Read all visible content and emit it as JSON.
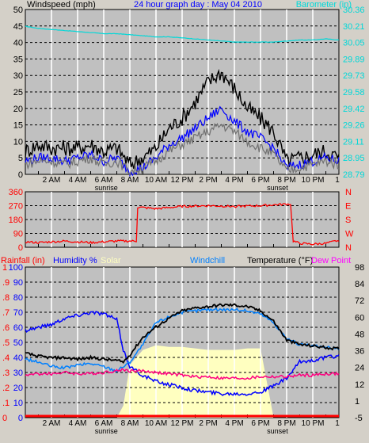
{
  "title": "24 hour graph day : May 04 2010",
  "colors": {
    "background": "#d4d0c8",
    "plot": "#c0c0c0",
    "grid_h": "#000000",
    "grid_v": "#ffffff",
    "title": "#0000ff",
    "barometer": "#00d8d8",
    "wind_gust": "#000000",
    "wind_avg": "#0000ff",
    "wind_dir": "#ff0000",
    "rain": "#ff0000",
    "humidity": "#0000ff",
    "solar": "#ffffc0",
    "windchill": "#0080ff",
    "temperature": "#000000",
    "dewpoint": "#ff0080"
  },
  "x_ticks": [
    "2 AM",
    "4 AM",
    "6 AM",
    "8 AM",
    "10 AM",
    "12 PM",
    "2 PM",
    "4 PM",
    "6 PM",
    "8 PM",
    "10 PM"
  ],
  "sunrise_label": "sunrise",
  "sunset_label": "sunset",
  "chart_data": [
    {
      "type": "line",
      "name": "wind-barometer",
      "left_axis_label": "Windspeed (mph)",
      "right_axis_label": "Barometer (in)",
      "ylim_left": [
        0,
        50
      ],
      "ylim_right": [
        28.79,
        30.36
      ],
      "left_ticks": [
        "0",
        "5",
        "10",
        "15",
        "20",
        "25",
        "30",
        "35",
        "40",
        "45",
        "50"
      ],
      "right_ticks": [
        "28.79",
        "28.95",
        "29.11",
        "29.26",
        "29.42",
        "29.58",
        "29.73",
        "29.89",
        "30.05",
        "30.21",
        "30.36"
      ],
      "x_hours": [
        0,
        1,
        2,
        3,
        4,
        5,
        6,
        7,
        8,
        9,
        10,
        11,
        12,
        13,
        14,
        15,
        16,
        17,
        18,
        19,
        20,
        21,
        22,
        23,
        24
      ],
      "series": [
        {
          "key": "barometer",
          "axis": "right",
          "values": [
            30.2,
            30.18,
            30.17,
            30.16,
            30.15,
            30.14,
            30.13,
            30.13,
            30.12,
            30.11,
            30.1,
            30.1,
            30.09,
            30.08,
            30.07,
            30.06,
            30.05,
            30.05,
            30.05,
            30.05,
            30.06,
            30.07,
            30.07,
            30.08,
            30.07
          ]
        },
        {
          "key": "gust",
          "axis": "left",
          "values": [
            7,
            9,
            8,
            8,
            8,
            9,
            7,
            8,
            3,
            5,
            8,
            14,
            17,
            22,
            28,
            31,
            26,
            20,
            17,
            13,
            4,
            5,
            6,
            7,
            5
          ]
        },
        {
          "key": "avg",
          "axis": "left",
          "values": [
            4,
            5,
            5,
            4,
            5,
            6,
            4,
            5,
            1,
            2,
            5,
            9,
            11,
            14,
            17,
            20,
            16,
            13,
            11,
            8,
            2,
            3,
            4,
            5,
            4
          ]
        },
        {
          "key": "avg_gray",
          "axis": "left",
          "values": [
            3,
            4,
            4,
            3,
            4,
            5,
            3,
            4,
            1,
            2,
            4,
            7,
            9,
            11,
            13,
            15,
            13,
            10,
            8,
            6,
            1,
            2,
            3,
            4,
            3
          ]
        }
      ]
    },
    {
      "type": "line",
      "name": "wind-direction",
      "left_ticks": [
        "0",
        "90",
        "180",
        "270",
        "360"
      ],
      "right_ticks": [
        "N",
        "W",
        "S",
        "E",
        "N"
      ],
      "ylim": [
        0,
        360
      ],
      "x_hours": [
        0,
        1,
        2,
        3,
        4,
        5,
        6,
        7,
        8,
        8.5,
        8.6,
        10,
        12,
        14,
        16,
        18,
        20,
        20.3,
        20.5,
        21,
        22,
        23,
        24
      ],
      "series": [
        {
          "key": "direction",
          "values": [
            35,
            30,
            35,
            40,
            35,
            30,
            35,
            40,
            40,
            40,
            260,
            250,
            265,
            270,
            265,
            270,
            280,
            280,
            40,
            25,
            20,
            25,
            45
          ]
        }
      ]
    },
    {
      "type": "area",
      "name": "temp-humidity",
      "header": {
        "rain": "Rainfall (in)",
        "humidity": "Humidity %",
        "solar": "Solar",
        "windchill": "Windchill",
        "temperature": "Temperature (°F)",
        "dewpoint": "Dew Point"
      },
      "rain_ticks": [
        "0",
        ".1",
        ".2",
        ".3",
        ".4",
        ".5",
        ".6",
        ".7",
        ".8",
        ".9",
        "1"
      ],
      "humidity_ticks": [
        "0",
        "10",
        "20",
        "30",
        "40",
        "50",
        "60",
        "70",
        "80",
        "90",
        "100"
      ],
      "temp_ticks": [
        "-5",
        "1",
        "12",
        "24",
        "36",
        "48",
        "60",
        "72",
        "84",
        "98"
      ],
      "ylim_humidity": [
        0,
        100
      ],
      "ylim_temp": [
        -5,
        98
      ],
      "x_hours": [
        0,
        1,
        2,
        3,
        4,
        5,
        6,
        7,
        7.5,
        8,
        9,
        10,
        11,
        12,
        13,
        14,
        15,
        16,
        17,
        18,
        19,
        20,
        21,
        22,
        23,
        24
      ],
      "series": [
        {
          "key": "solar",
          "values": [
            0,
            0,
            0,
            0,
            0,
            0,
            0,
            0,
            8,
            35,
            45,
            48,
            47,
            47,
            46,
            45,
            45,
            45,
            46,
            46,
            0,
            0,
            0,
            0,
            0,
            0
          ]
        },
        {
          "key": "humidity",
          "values": [
            58,
            60,
            62,
            66,
            68,
            70,
            69,
            65,
            45,
            34,
            28,
            24,
            22,
            20,
            18,
            17,
            16,
            16,
            16,
            17,
            21,
            26,
            37,
            38,
            40,
            41
          ]
        },
        {
          "key": "windchill",
          "values": [
            35,
            33,
            30,
            29,
            31,
            32,
            30,
            27,
            30,
            33,
            45,
            60,
            64,
            67,
            68,
            69,
            69,
            69,
            68,
            66,
            60,
            49,
            45,
            44,
            43,
            42
          ]
        },
        {
          "key": "temperature",
          "values": [
            39,
            37,
            36,
            36,
            35,
            36,
            35,
            34,
            33,
            38,
            50,
            57,
            63,
            68,
            70,
            71,
            72,
            72,
            71,
            68,
            61,
            48,
            45,
            44,
            43,
            42
          ]
        },
        {
          "key": "dewpoint",
          "values": [
            24,
            25,
            25,
            26,
            25,
            25,
            26,
            27,
            28,
            27,
            27,
            26,
            25,
            24,
            23,
            23,
            22,
            22,
            22,
            23,
            23,
            23,
            24,
            24,
            25,
            25
          ]
        },
        {
          "key": "rain",
          "values": [
            0,
            0,
            0,
            0,
            0,
            0,
            0,
            0,
            0,
            0,
            0,
            0,
            0,
            0,
            0,
            0,
            0,
            0,
            0,
            0,
            0,
            0,
            0,
            0,
            0,
            0
          ]
        }
      ]
    }
  ]
}
